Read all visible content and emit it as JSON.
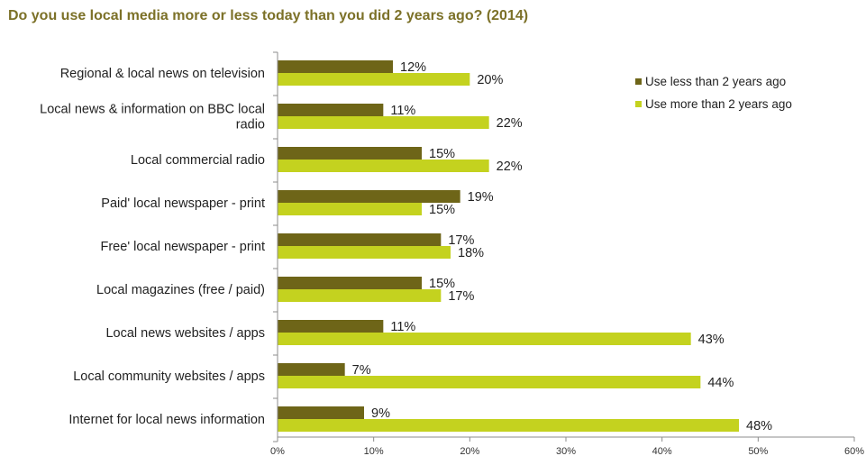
{
  "chart_data": {
    "type": "bar",
    "orientation": "horizontal",
    "title": "Do you use local media more or less today than you did 2 years ago? (2014)",
    "categories": [
      "Regional & local news on television",
      "Local news & information on BBC local radio",
      "Local commercial radio",
      "Paid' local newspaper - print",
      "Free' local newspaper - print",
      "Local magazines (free / paid)",
      "Local news websites / apps",
      "Local community websites / apps",
      "Internet for local news information"
    ],
    "category_lines": [
      [
        "Regional & local news on television"
      ],
      [
        "Local news & information on BBC local",
        "radio"
      ],
      [
        "Local commercial radio"
      ],
      [
        "Paid' local newspaper - print"
      ],
      [
        "Free' local newspaper - print"
      ],
      [
        "Local magazines (free / paid)"
      ],
      [
        "Local news websites / apps"
      ],
      [
        "Local community websites / apps"
      ],
      [
        "Internet for local news information"
      ]
    ],
    "series": [
      {
        "name": "Use less than 2 years ago",
        "color": "#6e6518",
        "values": [
          12,
          11,
          15,
          19,
          17,
          15,
          11,
          7,
          9
        ],
        "labels": [
          "12%",
          "11%",
          "15%",
          "19%",
          "17%",
          "15%",
          "11%",
          "7%",
          "9%"
        ]
      },
      {
        "name": "Use more than 2 years ago",
        "color": "#c4d21f",
        "values": [
          20,
          22,
          22,
          15,
          18,
          17,
          43,
          44,
          48
        ],
        "labels": [
          "20%",
          "22%",
          "22%",
          "15%",
          "18%",
          "17%",
          "43%",
          "44%",
          "48%"
        ]
      }
    ],
    "x_ticks": [
      "0%",
      "10%",
      "20%",
      "30%",
      "40%",
      "50%",
      "60%"
    ],
    "xlim": [
      0,
      60
    ],
    "grid": false,
    "legend_position": "top-right",
    "title_color": "#7c7128",
    "axis_color": "#8c8c8c"
  }
}
